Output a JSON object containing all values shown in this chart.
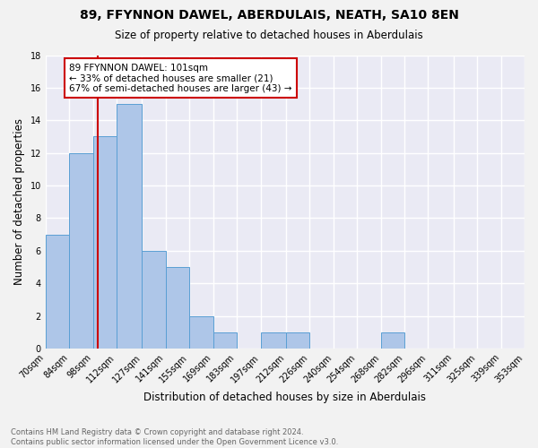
{
  "title1": "89, FFYNNON DAWEL, ABERDULAIS, NEATH, SA10 8EN",
  "title2": "Size of property relative to detached houses in Aberdulais",
  "xlabel": "Distribution of detached houses by size in Aberdulais",
  "ylabel": "Number of detached properties",
  "footer1": "Contains HM Land Registry data © Crown copyright and database right 2024.",
  "footer2": "Contains public sector information licensed under the Open Government Licence v3.0.",
  "bin_edges": [
    70,
    84,
    98,
    112,
    127,
    141,
    155,
    169,
    183,
    197,
    212,
    226,
    240,
    254,
    268,
    282,
    296,
    311,
    325,
    339,
    353
  ],
  "bin_labels": [
    "70sqm",
    "84sqm",
    "98sqm",
    "112sqm",
    "127sqm",
    "141sqm",
    "155sqm",
    "169sqm",
    "183sqm",
    "197sqm",
    "212sqm",
    "226sqm",
    "240sqm",
    "254sqm",
    "268sqm",
    "282sqm",
    "296sqm",
    "311sqm",
    "325sqm",
    "339sqm",
    "353sqm"
  ],
  "counts": [
    7,
    12,
    13,
    15,
    6,
    5,
    2,
    1,
    0,
    1,
    1,
    0,
    0,
    0,
    1,
    0,
    0,
    0,
    0,
    0
  ],
  "bar_color": "#aec6e8",
  "bar_edge_color": "#5a9fd4",
  "property_line_x": 101,
  "property_line_color": "#cc0000",
  "annotation_text": "89 FFYNNON DAWEL: 101sqm\n← 33% of detached houses are smaller (21)\n67% of semi-detached houses are larger (43) →",
  "annotation_box_color": "#ffffff",
  "annotation_box_edge": "#cc0000",
  "ylim": [
    0,
    18
  ],
  "yticks": [
    0,
    2,
    4,
    6,
    8,
    10,
    12,
    14,
    16,
    18
  ],
  "background_color": "#eaeaf4",
  "grid_color": "#ffffff",
  "fig_background": "#f2f2f2"
}
